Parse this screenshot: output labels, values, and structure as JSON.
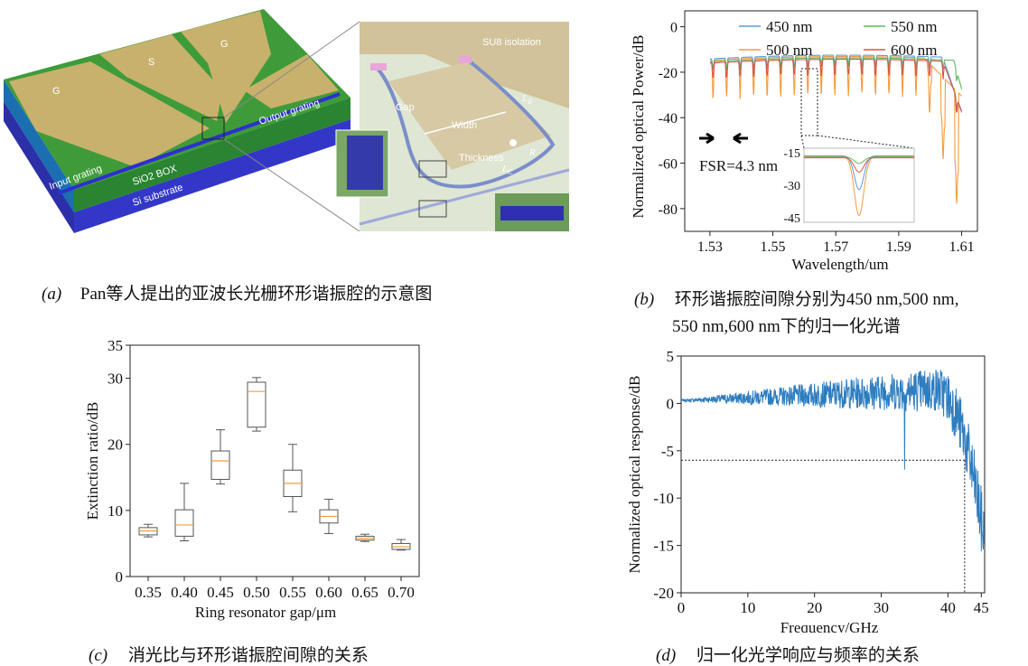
{
  "panel_a": {
    "pad_labels": [
      "G",
      "S",
      "G"
    ],
    "labels": {
      "output_grating": "Output grating",
      "input_grating": "Input grating",
      "sio2_box": "SiO2 BOX",
      "si_substrate": "Si substrate",
      "su8_isolation": "SU8 isolation",
      "gap": "Gap",
      "width": "Width",
      "thickness": "Thickness",
      "lr": "L",
      "lr_sub": "R",
      "r": "R",
      "lc": "L",
      "lc_sub": "C"
    },
    "caption_label": "(a)",
    "caption_text": "Pan等人提出的亚波长光栅环形谐振腔的示意图"
  },
  "chart_data": [
    {
      "type": "line",
      "panel": "b",
      "xlabel": "Wavelength/um",
      "ylabel": "Normalized optical Power/dB",
      "xlim": [
        1.522,
        1.615
      ],
      "ylim": [
        -90,
        7
      ],
      "xticks": [
        "1.53",
        "1.55",
        "1.57",
        "1.59",
        "1.61"
      ],
      "yticks": [
        "0",
        "-20",
        "-40",
        "-60",
        "-80"
      ],
      "legend": "top-right",
      "series": [
        {
          "name": "450 nm",
          "color": "#5b9bd5"
        },
        {
          "name": "500 nm",
          "color": "#f39c3c"
        },
        {
          "name": "550 nm",
          "color": "#5cb85c"
        },
        {
          "name": "600 nm",
          "color": "#d9534f"
        }
      ],
      "fsr_label": "FSR=4.3 nm",
      "inset": {
        "yticks": [
          "-15",
          "-30",
          "-45"
        ],
        "ylim": [
          -47,
          -13
        ]
      }
    },
    {
      "type": "box",
      "panel": "c",
      "xlabel": "Ring resonator gap/μm",
      "ylabel": "Extinction ratio/dB",
      "ylim": [
        0,
        35
      ],
      "yticks": [
        "0",
        "10",
        "20",
        "30",
        "35"
      ],
      "categories": [
        "0.35",
        "0.40",
        "0.45",
        "0.50",
        "0.55",
        "0.60",
        "0.65",
        "0.70"
      ],
      "boxes": [
        {
          "min": 6.0,
          "q1": 6.3,
          "median": 6.9,
          "q3": 7.4,
          "max": 7.9
        },
        {
          "min": 5.4,
          "q1": 6.1,
          "median": 7.8,
          "q3": 10.1,
          "max": 14.1
        },
        {
          "min": 14.0,
          "q1": 14.7,
          "median": 17.5,
          "q3": 19.0,
          "max": 22.2
        },
        {
          "min": 22.0,
          "q1": 22.6,
          "median": 28.0,
          "q3": 29.4,
          "max": 30.1
        },
        {
          "min": 9.8,
          "q1": 12.1,
          "median": 14.1,
          "q3": 16.1,
          "max": 20.0
        },
        {
          "min": 6.5,
          "q1": 8.1,
          "median": 9.1,
          "q3": 10.1,
          "max": 11.7
        },
        {
          "min": 5.3,
          "q1": 5.5,
          "median": 5.8,
          "q3": 6.1,
          "max": 6.4
        },
        {
          "min": 4.0,
          "q1": 4.1,
          "median": 4.5,
          "q3": 5.0,
          "max": 5.6
        }
      ]
    },
    {
      "type": "line",
      "panel": "d",
      "xlabel": "Frequency/GHz",
      "ylabel": "Normalized optical response/dB",
      "xlim": [
        0,
        45.5
      ],
      "ylim": [
        -20,
        5
      ],
      "xticks": [
        "0",
        "10",
        "20",
        "30",
        "40",
        "45"
      ],
      "yticks": [
        "5",
        "0",
        "-5",
        "-10",
        "-15",
        "-20"
      ],
      "color": "#2e7dbf",
      "reference": {
        "level_db": -6,
        "freq_ghz": 42.5
      }
    }
  ],
  "captions": {
    "b_label": "(b)",
    "b_line1": "环形谐振腔间隙分别为450 nm,500 nm,",
    "b_line2": "550 nm,600 nm下的归一化光谱",
    "c_label": "(c)",
    "c_text": "消光比与环形谐振腔间隙的关系",
    "d_label": "(d)",
    "d_text": "归一化光学响应与频率的关系"
  }
}
